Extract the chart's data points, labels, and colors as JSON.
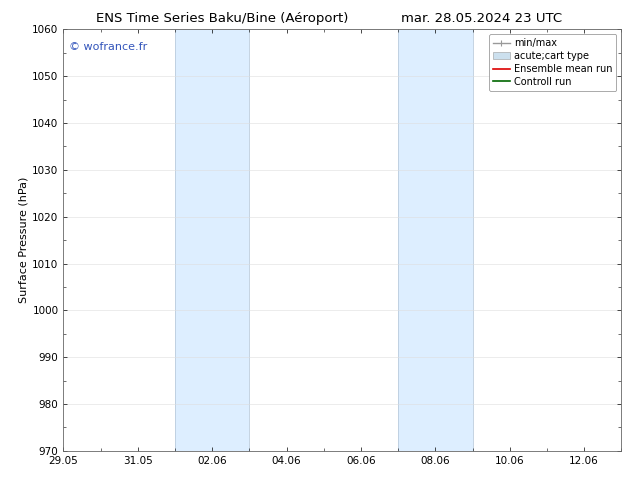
{
  "title_left": "ENS Time Series Baku/Bine (Aéroport)",
  "title_right": "mar. 28.05.2024 23 UTC",
  "ylabel": "Surface Pressure (hPa)",
  "ylim": [
    970,
    1060
  ],
  "yticks": [
    970,
    980,
    990,
    1000,
    1010,
    1020,
    1030,
    1040,
    1050,
    1060
  ],
  "xlim": [
    0,
    15
  ],
  "xtick_labels": [
    "29.05",
    "31.05",
    "02.06",
    "04.06",
    "06.06",
    "08.06",
    "10.06",
    "12.06"
  ],
  "xtick_positions_days": [
    0,
    2,
    4,
    6,
    8,
    10,
    12,
    14
  ],
  "shaded_bands": [
    {
      "x_start_day": 3.0,
      "x_end_day": 5.0
    },
    {
      "x_start_day": 9.0,
      "x_end_day": 11.0
    }
  ],
  "band_color": "#ddeeff",
  "band_edge_color": "#bbccdd",
  "watermark": "© wofrance.fr",
  "watermark_color": "#3355bb",
  "legend_entries": [
    {
      "label": "min/max",
      "color": "#999999",
      "lw": 1.0,
      "style": "minmax"
    },
    {
      "label": "acute;cart type",
      "color": "#cce0ee",
      "lw": 8,
      "style": "bar"
    },
    {
      "label": "Ensemble mean run",
      "color": "#dd0000",
      "lw": 1.2,
      "style": "line"
    },
    {
      "label": "Controll run",
      "color": "#006600",
      "lw": 1.2,
      "style": "line"
    }
  ],
  "bg_color": "#ffffff",
  "font_size_title": 9.5,
  "font_size_axis": 8,
  "font_size_ticks": 7.5,
  "font_size_legend": 7,
  "font_size_watermark": 8
}
